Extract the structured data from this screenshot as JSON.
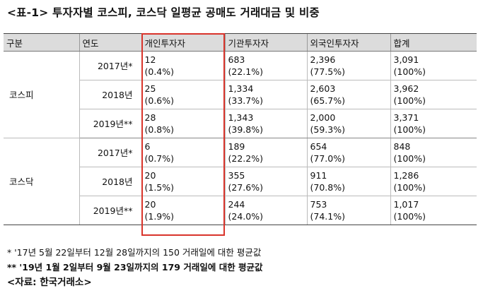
{
  "title": "<표-1> 투자자별 코스피, 코스닥 일평균 공매도 거래대금 및 비중",
  "table": {
    "headers": [
      "구분",
      "연도",
      "개인투자자",
      "기관투자자",
      "외국인투자자",
      "합계"
    ],
    "groups": [
      {
        "market": "코스피",
        "rows": [
          {
            "year": "2017년*",
            "individual": [
              "12",
              "(0.4%)"
            ],
            "institution": [
              "683",
              "(22.1%)"
            ],
            "foreign": [
              "2,396",
              "(77.5%)"
            ],
            "total": [
              "3,091",
              "(100%)"
            ]
          },
          {
            "year": "2018년",
            "individual": [
              "25",
              "(0.6%)"
            ],
            "institution": [
              "1,334",
              "(33.7%)"
            ],
            "foreign": [
              "2,603",
              "(65.7%)"
            ],
            "total": [
              "3,962",
              "(100%)"
            ]
          },
          {
            "year": "2019년**",
            "individual": [
              "28",
              "(0.8%)"
            ],
            "institution": [
              "1,343",
              "(39.8%)"
            ],
            "foreign": [
              "2,000",
              "(59.3%)"
            ],
            "total": [
              "3,371",
              "(100%)"
            ]
          }
        ]
      },
      {
        "market": "코스닥",
        "rows": [
          {
            "year": "2017년*",
            "individual": [
              "6",
              "(0.7%)"
            ],
            "institution": [
              "189",
              "(22.2%)"
            ],
            "foreign": [
              "654",
              "(77.0%)"
            ],
            "total": [
              "848",
              "(100%)"
            ]
          },
          {
            "year": "2018년",
            "individual": [
              "20",
              "(1.5%)"
            ],
            "institution": [
              "355",
              "(27.6%)"
            ],
            "foreign": [
              "911",
              "(70.8%)"
            ],
            "total": [
              "1,286",
              "(100%)"
            ]
          },
          {
            "year": "2019년**",
            "individual": [
              "20",
              "(1.9%)"
            ],
            "institution": [
              "244",
              "(24.0%)"
            ],
            "foreign": [
              "753",
              "(74.1%)"
            ],
            "total": [
              "1,017",
              "(100%)"
            ]
          }
        ]
      }
    ]
  },
  "highlight": {
    "column": "개인투자자",
    "color": "#d9342b"
  },
  "notes": [
    "* '17년 5월 22일부터 12월 28일까지의 150 거래일에 대한 평균값",
    "** '19년 1월 2일부터 9월 23일까지의 179 거래일에 대한 평균값"
  ],
  "source": "<자료: 한국거래소>"
}
